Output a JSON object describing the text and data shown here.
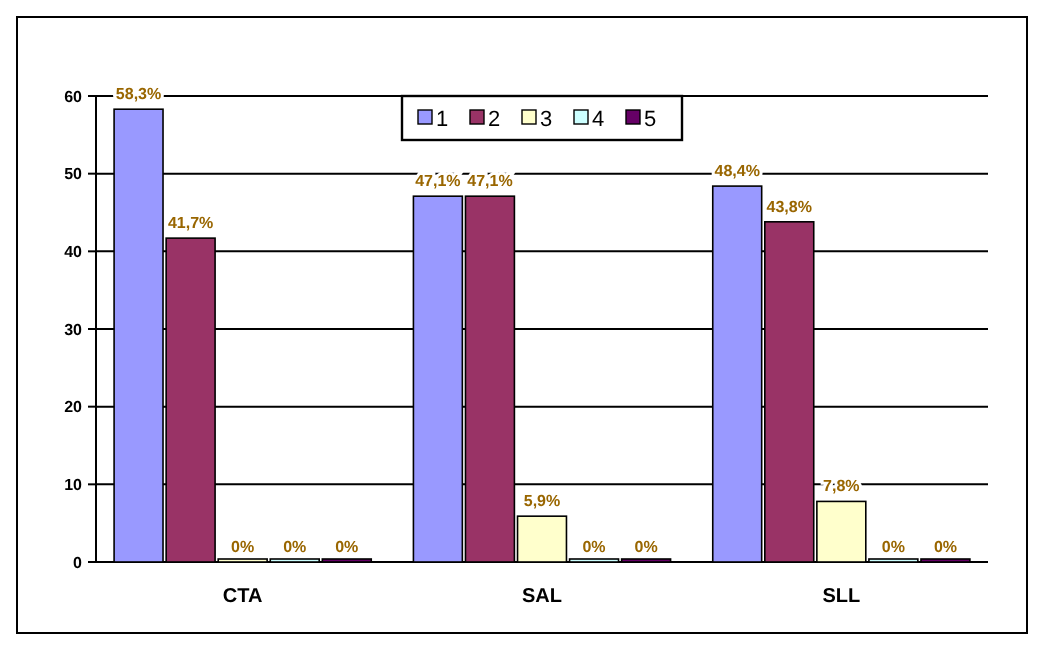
{
  "chart_data": {
    "type": "bar",
    "categories": [
      "CTA",
      "SAL",
      "SLL"
    ],
    "series": [
      {
        "name": "1",
        "color": "#9999ff",
        "values": [
          58.3,
          47.1,
          48.4
        ],
        "value_labels": [
          "58,3%",
          "47,1%",
          "48,4%"
        ]
      },
      {
        "name": "2",
        "color": "#993366",
        "values": [
          41.7,
          47.1,
          43.8
        ],
        "value_labels": [
          "41,7%",
          "47,1%",
          "43,8%"
        ]
      },
      {
        "name": "3",
        "color": "#ffffcc",
        "values": [
          0,
          5.9,
          7.8
        ],
        "value_labels": [
          "0%",
          "5,9%",
          "7,8%"
        ]
      },
      {
        "name": "4",
        "color": "#ccffff",
        "values": [
          0,
          0,
          0
        ],
        "value_labels": [
          "0%",
          "0%",
          "0%"
        ]
      },
      {
        "name": "5",
        "color": "#660066",
        "values": [
          0,
          0,
          0
        ],
        "value_labels": [
          "0%",
          "0%",
          "0%"
        ]
      }
    ],
    "ylim": [
      0,
      60
    ],
    "yticks": [
      0,
      10,
      20,
      30,
      40,
      50,
      60
    ],
    "grid": "y",
    "legend": "top"
  }
}
